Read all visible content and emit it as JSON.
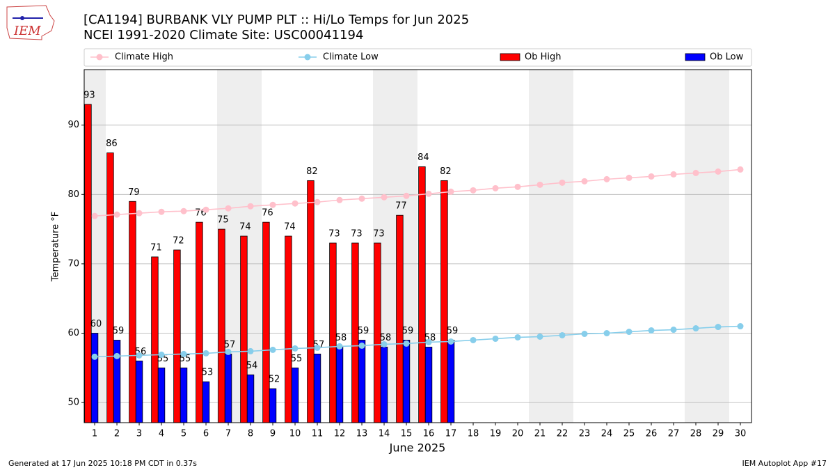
{
  "logo_text": "IEM",
  "chart_data": {
    "type": "bar_line",
    "title": "[CA1194] BURBANK VLY PUMP PLT :: Hi/Lo Temps for Jun 2025",
    "subtitle": "NCEI 1991-2020 Climate Site: USC00041194",
    "x_label": "June 2025",
    "y_label": "Temperature °F",
    "x": [
      1,
      2,
      3,
      4,
      5,
      6,
      7,
      8,
      9,
      10,
      11,
      12,
      13,
      14,
      15,
      16,
      17,
      18,
      19,
      20,
      21,
      22,
      23,
      24,
      25,
      26,
      27,
      28,
      29,
      30
    ],
    "xlim": [
      0.53,
      30.5
    ],
    "ylim": [
      47.1,
      98.0
    ],
    "yticks": [
      50,
      60,
      70,
      80,
      90
    ],
    "grid": true,
    "shaded_days": [
      1,
      7,
      8,
      14,
      15,
      21,
      22,
      28,
      29
    ],
    "shade_color": "#eeeeee",
    "series": [
      {
        "name": "Climate High",
        "kind": "line",
        "color": "#ffc0cb",
        "values": [
          76.9,
          77.1,
          77.3,
          77.5,
          77.6,
          77.8,
          78.0,
          78.3,
          78.5,
          78.7,
          78.9,
          79.2,
          79.4,
          79.6,
          79.8,
          80.1,
          80.4,
          80.6,
          80.9,
          81.1,
          81.4,
          81.7,
          81.9,
          82.2,
          82.4,
          82.6,
          82.9,
          83.1,
          83.3,
          83.6
        ]
      },
      {
        "name": "Climate Low",
        "kind": "line",
        "color": "#87ceeb",
        "values": [
          56.6,
          56.7,
          56.8,
          56.9,
          57.0,
          57.1,
          57.3,
          57.4,
          57.6,
          57.8,
          57.9,
          58.1,
          58.2,
          58.4,
          58.5,
          58.7,
          58.8,
          59.0,
          59.2,
          59.4,
          59.5,
          59.7,
          59.9,
          60.0,
          60.2,
          60.4,
          60.5,
          60.7,
          60.9,
          61.0
        ]
      },
      {
        "name": "Ob High",
        "kind": "bar",
        "color": "#ff0000",
        "values": [
          93,
          86,
          79,
          71,
          72,
          76,
          75,
          74,
          76,
          74,
          82,
          73,
          73,
          73,
          77,
          84,
          82,
          null,
          null,
          null,
          null,
          null,
          null,
          null,
          null,
          null,
          null,
          null,
          null,
          null
        ]
      },
      {
        "name": "Ob Low",
        "kind": "bar",
        "color": "#0000ff",
        "values": [
          60,
          59,
          56,
          55,
          55,
          53,
          57,
          54,
          52,
          55,
          57,
          58,
          59,
          58,
          59,
          58,
          59,
          null,
          null,
          null,
          null,
          null,
          null,
          null,
          null,
          null,
          null,
          null,
          null,
          null
        ]
      }
    ],
    "footer_left": "Generated at 17 Jun 2025 10:18 PM CDT in 0.37s",
    "footer_right": "IEM Autoplot App #17"
  }
}
